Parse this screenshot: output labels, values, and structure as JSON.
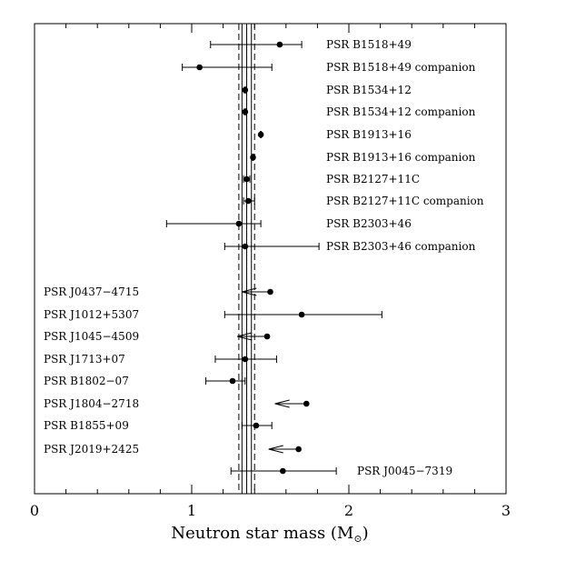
{
  "chart_data": {
    "type": "scatter",
    "xlabel": "Neutron star mass (M",
    "xlabel_sub": "⊙",
    "xlabel_end": ")",
    "xlim": [
      0,
      3
    ],
    "x_ticks": [
      0,
      1,
      2,
      3
    ],
    "x_minor_step": 0.2,
    "reference_lines": [
      {
        "x": 1.35,
        "style": "solid"
      },
      {
        "x": 1.32,
        "style": "solid"
      },
      {
        "x": 1.38,
        "style": "solid"
      },
      {
        "x": 1.3,
        "style": "dashed"
      },
      {
        "x": 1.4,
        "style": "dashed"
      }
    ],
    "systems": [
      {
        "label": "PSR B1518+49",
        "mass": 1.56,
        "err_lo": 1.12,
        "err_hi": 1.7,
        "label_side": "right"
      },
      {
        "label": "PSR B1518+49 companion",
        "mass": 1.05,
        "err_lo": 0.94,
        "err_hi": 1.51,
        "label_side": "right"
      },
      {
        "label": "PSR B1534+12",
        "mass": 1.34,
        "err_lo": 1.335,
        "err_hi": 1.345,
        "label_side": "right"
      },
      {
        "label": "PSR B1534+12 companion",
        "mass": 1.34,
        "err_lo": 1.335,
        "err_hi": 1.345,
        "label_side": "right"
      },
      {
        "label": "PSR B1913+16",
        "mass": 1.44,
        "err_lo": 1.437,
        "err_hi": 1.443,
        "label_side": "right"
      },
      {
        "label": "PSR B1913+16 companion",
        "mass": 1.39,
        "err_lo": 1.387,
        "err_hi": 1.393,
        "label_side": "right"
      },
      {
        "label": "PSR B2127+11C",
        "mass": 1.35,
        "err_lo": 1.33,
        "err_hi": 1.37,
        "label_side": "right"
      },
      {
        "label": "PSR B2127+11C companion",
        "mass": 1.36,
        "err_lo": 1.33,
        "err_hi": 1.4,
        "label_side": "right"
      },
      {
        "label": "PSR B2303+46",
        "mass": 1.3,
        "err_lo": 0.84,
        "err_hi": 1.44,
        "label_side": "right"
      },
      {
        "label": "PSR B2303+46 companion",
        "mass": 1.34,
        "err_lo": 1.21,
        "err_hi": 1.81,
        "label_side": "right"
      },
      {
        "label": "PSR J0437−4715",
        "mass": 1.5,
        "upper_limit": true,
        "arrow_to": 1.32,
        "label_side": "left"
      },
      {
        "label": "PSR J1012+5307",
        "mass": 1.7,
        "err_lo": 1.21,
        "err_hi": 2.21,
        "label_side": "left"
      },
      {
        "label": "PSR J1045−4509",
        "mass": 1.48,
        "upper_limit": true,
        "arrow_to": 1.29,
        "label_side": "left"
      },
      {
        "label": "PSR J1713+07",
        "mass": 1.34,
        "err_lo": 1.15,
        "err_hi": 1.54,
        "label_side": "left"
      },
      {
        "label": "PSR B1802−07",
        "mass": 1.26,
        "err_lo": 1.09,
        "err_hi": 1.34,
        "label_side": "left"
      },
      {
        "label": "PSR J1804−2718",
        "mass": 1.73,
        "upper_limit": true,
        "arrow_to": 1.53,
        "label_side": "left"
      },
      {
        "label": "PSR B1855+09",
        "mass": 1.41,
        "err_lo": 1.32,
        "err_hi": 1.51,
        "label_side": "left"
      },
      {
        "label": "PSR J2019+2425",
        "mass": 1.68,
        "upper_limit": true,
        "arrow_to": 1.49,
        "label_side": "left"
      },
      {
        "label": "PSR J0045−7319",
        "mass": 1.58,
        "err_lo": 1.25,
        "err_hi": 1.92,
        "label_side": "right"
      }
    ]
  }
}
